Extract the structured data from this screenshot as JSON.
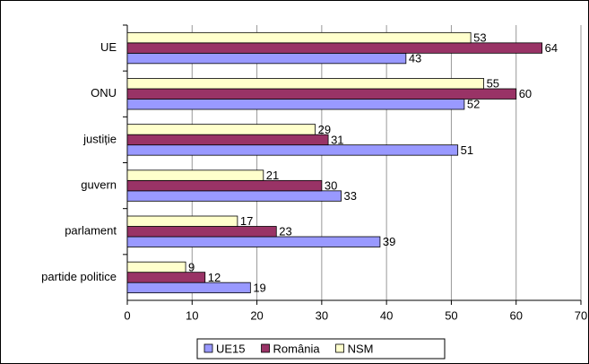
{
  "chart_data": {
    "type": "bar",
    "orientation": "horizontal",
    "categories": [
      "UE",
      "ONU",
      "justiție",
      "guvern",
      "parlament",
      "partide politice"
    ],
    "series": [
      {
        "name": "UE15",
        "color": "#9999ff",
        "values": [
          43,
          52,
          51,
          33,
          39,
          19
        ]
      },
      {
        "name": "România",
        "color": "#993366",
        "values": [
          64,
          60,
          31,
          30,
          23,
          12
        ]
      },
      {
        "name": "NSM",
        "color": "#ffffcc",
        "values": [
          53,
          55,
          29,
          21,
          17,
          9
        ]
      }
    ],
    "xlim": [
      0,
      70
    ],
    "xticks": [
      0,
      10,
      20,
      30,
      40,
      50,
      60,
      70
    ],
    "grid": true,
    "legend": "bottom"
  }
}
